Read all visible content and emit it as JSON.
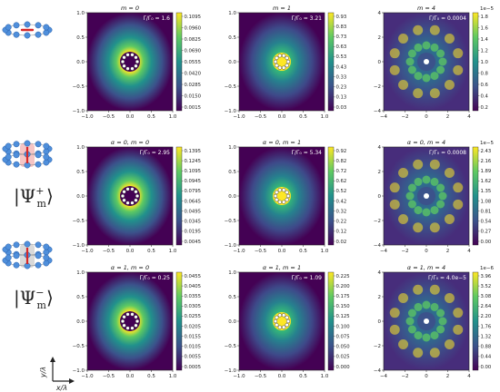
{
  "figure": {
    "row_labels": [
      {
        "row": 1,
        "text": "|Ψ⁺ₘ⟩",
        "main": "Ψ",
        "sup": "+",
        "sub": "m"
      },
      {
        "row": 2,
        "text": "|Ψ⁻ₘ⟩",
        "main": "Ψ",
        "sup": "−",
        "sub": "m"
      }
    ],
    "axes_icon": {
      "y_label": "y/λ",
      "x_label": "x/λ"
    }
  },
  "chart_data": [
    {
      "type": "heatmap",
      "title": "m = 0",
      "annotation": "Γ/Γ₀ = 1.6",
      "pattern": "ring",
      "ring_radius": 0.35,
      "xlim": [
        -1,
        1
      ],
      "ylim": [
        -1,
        1
      ],
      "xticks": [
        "−1.0",
        "−0.5",
        "0.0",
        "0.5",
        "1.0"
      ],
      "yticks": [
        "−1.0",
        "−0.5",
        "0.0",
        "0.5",
        "1.0"
      ],
      "colorbar": {
        "ticks": [
          "0.1095",
          "0.0960",
          "0.0825",
          "0.0690",
          "0.0555",
          "0.0420",
          "0.0285",
          "0.0150",
          "0.0015"
        ],
        "exponent": ""
      }
    },
    {
      "type": "heatmap",
      "title": "m = 1",
      "annotation": "Γ/Γ₀ = 3.21",
      "pattern": "center",
      "ring_radius": 0,
      "xlim": [
        -1,
        1
      ],
      "ylim": [
        -1,
        1
      ],
      "xticks": [
        "−1.0",
        "−0.5",
        "0.0",
        "0.5",
        "1.0"
      ],
      "yticks": [
        "−1.0",
        "−0.5",
        "0.0",
        "0.5",
        "1.0"
      ],
      "colorbar": {
        "ticks": [
          "0.93",
          "0.83",
          "0.73",
          "0.63",
          "0.53",
          "0.43",
          "0.33",
          "0.23",
          "0.13",
          "0.03"
        ],
        "exponent": ""
      }
    },
    {
      "type": "heatmap",
      "title": "m = 4",
      "annotation": "Γ/Γ₀ = 0.0004",
      "pattern": "star",
      "ring_radius": 0.5,
      "xlim": [
        -4,
        4
      ],
      "ylim": [
        -4,
        4
      ],
      "xticks": [
        "−4",
        "−2",
        "0",
        "2",
        "4"
      ],
      "yticks": [
        "−4",
        "−2",
        "0",
        "2",
        "4"
      ],
      "colorbar": {
        "ticks": [
          "1.8",
          "1.6",
          "1.4",
          "1.2",
          "1.0",
          "0.8",
          "0.6",
          "0.4",
          "0.2"
        ],
        "exponent": "1e−5"
      }
    },
    {
      "type": "heatmap",
      "title": "α = 0, m = 0",
      "annotation": "Γ/Γ₀ = 2.95",
      "pattern": "ring",
      "ring_radius": 0.3,
      "xlim": [
        -1,
        1
      ],
      "ylim": [
        -1,
        1
      ],
      "xticks": [
        "−1.0",
        "−0.5",
        "0.0",
        "0.5",
        "1.0"
      ],
      "yticks": [
        "−1.0",
        "−0.5",
        "0.0",
        "0.5",
        "1.0"
      ],
      "colorbar": {
        "ticks": [
          "0.1395",
          "0.1245",
          "0.1095",
          "0.0945",
          "0.0795",
          "0.0645",
          "0.0495",
          "0.0345",
          "0.0195",
          "0.0045"
        ],
        "exponent": ""
      }
    },
    {
      "type": "heatmap",
      "title": "α = 0, m = 1",
      "annotation": "Γ/Γ₀ = 5.34",
      "pattern": "center",
      "ring_radius": 0,
      "xlim": [
        -1,
        1
      ],
      "ylim": [
        -1,
        1
      ],
      "xticks": [
        "−1.0",
        "−0.5",
        "0.0",
        "0.5",
        "1.0"
      ],
      "yticks": [
        "−1.0",
        "−0.5",
        "0.0",
        "0.5",
        "1.0"
      ],
      "colorbar": {
        "ticks": [
          "0.92",
          "0.82",
          "0.72",
          "0.62",
          "0.52",
          "0.42",
          "0.32",
          "0.22",
          "0.12",
          "0.02"
        ],
        "exponent": ""
      }
    },
    {
      "type": "heatmap",
      "title": "α = 0, m = 4",
      "annotation": "Γ/Γ₀ = 0.0008",
      "pattern": "star",
      "ring_radius": 0.5,
      "xlim": [
        -4,
        4
      ],
      "ylim": [
        -4,
        4
      ],
      "xticks": [
        "−4",
        "−2",
        "0",
        "2",
        "4"
      ],
      "yticks": [
        "−4",
        "−2",
        "0",
        "2",
        "4"
      ],
      "colorbar": {
        "ticks": [
          "2.43",
          "2.16",
          "1.89",
          "1.62",
          "1.35",
          "1.08",
          "0.81",
          "0.54",
          "0.27",
          "0.00"
        ],
        "exponent": "1e−5"
      }
    },
    {
      "type": "heatmap",
      "title": "α = 1, m = 0",
      "annotation": "Γ/Γ₀ = 0.25",
      "pattern": "ring",
      "ring_radius": 0.22,
      "xlim": [
        -1,
        1
      ],
      "ylim": [
        -1,
        1
      ],
      "xticks": [
        "−1.0",
        "−0.5",
        "0.0",
        "0.5",
        "1.0"
      ],
      "yticks": [
        "−1.0",
        "−0.5",
        "0.0",
        "0.5",
        "1.0"
      ],
      "colorbar": {
        "ticks": [
          "0.0455",
          "0.0405",
          "0.0355",
          "0.0305",
          "0.0255",
          "0.0205",
          "0.0155",
          "0.0105",
          "0.0055",
          "0.0005"
        ],
        "exponent": ""
      }
    },
    {
      "type": "heatmap",
      "title": "α = 1, m = 1",
      "annotation": "Γ/Γ₀ = 1.09",
      "pattern": "center",
      "ring_radius": 0,
      "xlim": [
        -1,
        1
      ],
      "ylim": [
        -1,
        1
      ],
      "xticks": [
        "−1.0",
        "−0.5",
        "0.0",
        "0.5",
        "1.0"
      ],
      "yticks": [
        "−1.0",
        "−0.5",
        "0.0",
        "0.5",
        "1.0"
      ],
      "colorbar": {
        "ticks": [
          "0.225",
          "0.200",
          "0.175",
          "0.150",
          "0.125",
          "0.100",
          "0.075",
          "0.050",
          "0.025",
          "0.000"
        ],
        "exponent": ""
      }
    },
    {
      "type": "heatmap",
      "title": "α = 1, m = 4",
      "annotation": "Γ/Γ₀ = 4.0e−5",
      "pattern": "star",
      "ring_radius": 0.5,
      "xlim": [
        -4,
        4
      ],
      "ylim": [
        -4,
        4
      ],
      "xticks": [
        "−4",
        "−2",
        "0",
        "2",
        "4"
      ],
      "yticks": [
        "−4",
        "−2",
        "0",
        "2",
        "4"
      ],
      "colorbar": {
        "ticks": [
          "3.96",
          "3.52",
          "3.08",
          "2.64",
          "2.20",
          "1.76",
          "1.32",
          "0.88",
          "0.44",
          "0.00"
        ],
        "exponent": "1e−6"
      }
    }
  ]
}
